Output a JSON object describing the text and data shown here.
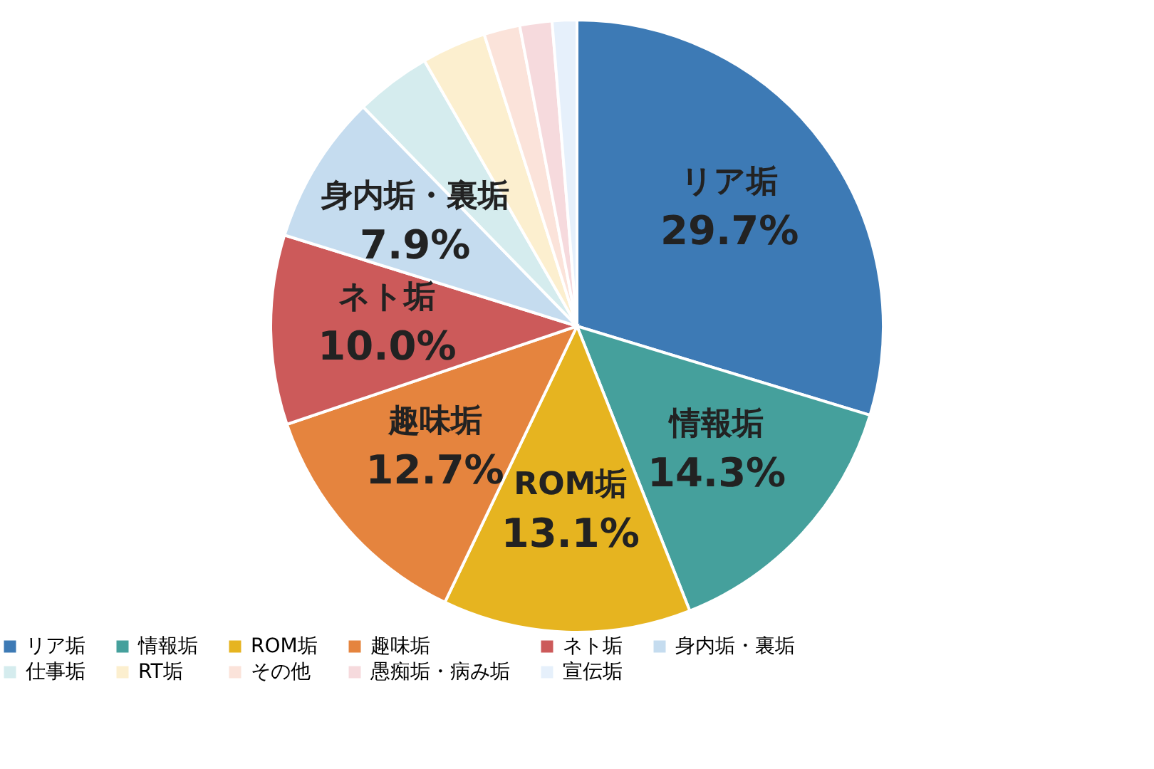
{
  "chart_data": {
    "type": "pie",
    "categories": [
      "リア垢",
      "情報垢",
      "ROM垢",
      "趣味垢",
      "ネト垢",
      "身内垢・裏垢",
      "仕事垢",
      "RT垢",
      "その他",
      "愚痴垢・病み垢",
      "宣伝垢"
    ],
    "values": [
      29.7,
      14.3,
      13.1,
      12.7,
      10.0,
      7.9,
      4.0,
      3.4,
      1.9,
      1.7,
      1.3
    ],
    "value_labels": [
      "29.7%",
      "14.3%",
      "13.1%",
      "12.7%",
      "10.0%",
      "7.9%",
      null,
      null,
      null,
      null,
      null
    ],
    "colors": [
      "#3d7ab5",
      "#45a09c",
      "#e6b420",
      "#e5843e",
      "#cc5a5a",
      "#c5dcef",
      "#d5ecee",
      "#fcefcf",
      "#fbe3da",
      "#f6dadd",
      "#e6f0fb"
    ],
    "legend": "bottom"
  }
}
